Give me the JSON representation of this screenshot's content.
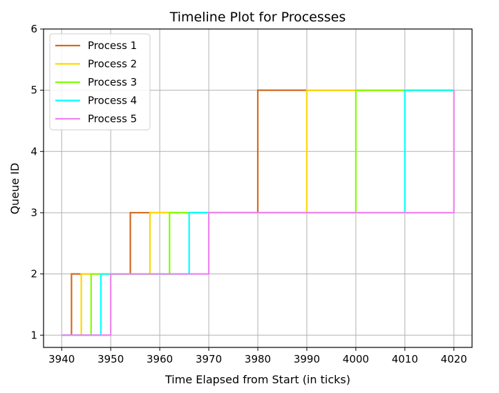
{
  "chart_data": {
    "type": "line",
    "step": "post",
    "title": "Timeline Plot for Processes",
    "xlabel": "Time Elapsed from Start (in ticks)",
    "ylabel": "Queue ID",
    "xlim": [
      3936.3,
      4023.7
    ],
    "ylim": [
      0.8,
      6
    ],
    "xticks": [
      3940,
      3950,
      3960,
      3970,
      3980,
      3990,
      4000,
      4010,
      4020
    ],
    "yticks": [
      1,
      2,
      3,
      4,
      5,
      6
    ],
    "grid": true,
    "legend_position": "top-left",
    "series": [
      {
        "name": "Process 1",
        "color": "#d2691e",
        "x": [
          3940,
          3942,
          3954,
          3980,
          4020
        ],
        "y": [
          1,
          2,
          3,
          5,
          5
        ]
      },
      {
        "name": "Process 2",
        "color": "#ffd700",
        "x": [
          3940,
          3944,
          3958,
          3990,
          4020
        ],
        "y": [
          1,
          2,
          3,
          5,
          5
        ]
      },
      {
        "name": "Process 3",
        "color": "#7fff00",
        "x": [
          3940,
          3946,
          3962,
          4000,
          4020
        ],
        "y": [
          1,
          2,
          3,
          5,
          5
        ]
      },
      {
        "name": "Process 4",
        "color": "#00ffff",
        "x": [
          3940,
          3948,
          3966,
          4010,
          4020
        ],
        "y": [
          1,
          2,
          3,
          5,
          5
        ]
      },
      {
        "name": "Process 5",
        "color": "#ee82ee",
        "x": [
          3940,
          3950,
          3970,
          4020,
          4020
        ],
        "y": [
          1,
          2,
          3,
          5,
          3
        ]
      }
    ]
  }
}
